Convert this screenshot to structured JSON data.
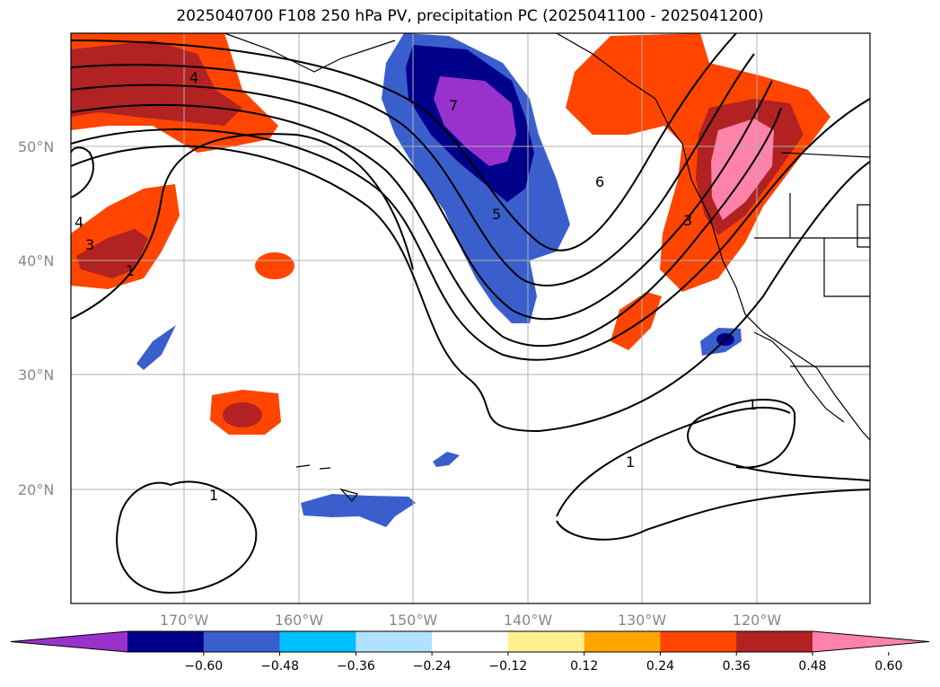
{
  "title": "2025040700 F108 250 hPa PV, precipitation PC (2025041100 - 2025041200)",
  "map": {
    "lat_labels": [
      "50°N",
      "40°N",
      "30°N",
      "20°N"
    ],
    "lon_labels": [
      "170°W",
      "160°W",
      "150°W",
      "140°W",
      "130°W",
      "120°W"
    ],
    "contour_labels": [
      "4",
      "3",
      "4",
      "1",
      "7",
      "5",
      "6",
      "3",
      "1",
      "1",
      "1"
    ]
  },
  "colorbar": {
    "colors": [
      "#9932cc",
      "#00008b",
      "#3a5fcd",
      "#00bfff",
      "#b0e2ff",
      "#ffffff",
      "#fff08b",
      "#ffa500",
      "#ff4500",
      "#b22222",
      "#ff82ab"
    ],
    "ticks": [
      "−0.60",
      "−0.48",
      "−0.36",
      "−0.24",
      "−0.12",
      "0.12",
      "0.24",
      "0.36",
      "0.48",
      "0.60"
    ]
  }
}
